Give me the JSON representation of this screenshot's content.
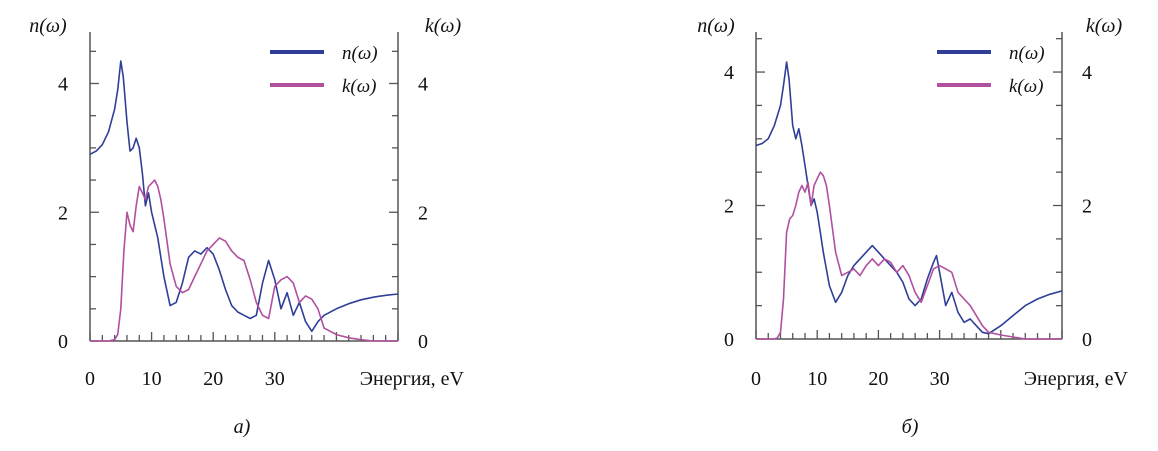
{
  "colors": {
    "n": "#2f3f97",
    "k": "#b0509f",
    "axis": "#555555"
  },
  "chart_data": [
    {
      "type": "line",
      "caption": "a)",
      "left_axis_title": "n(ω)",
      "right_axis_title": "k(ω)",
      "xlabel": "Энергия, eV",
      "xlim": [
        0,
        50
      ],
      "ylim": [
        0,
        4.8
      ],
      "x_ticks": [
        0,
        10,
        20,
        30
      ],
      "y_ticks": [
        0,
        2,
        4
      ],
      "legend_position": "top-right",
      "series": [
        {
          "name": "n(ω)",
          "color_key": "n",
          "x": [
            0,
            1,
            2,
            3,
            4,
            4.5,
            5,
            5.4,
            6,
            6.5,
            7,
            7.5,
            8,
            8.5,
            9,
            9.5,
            10,
            10.5,
            11,
            12,
            13,
            14,
            15,
            16,
            17,
            18,
            19,
            20,
            21,
            22,
            23,
            24,
            25,
            26,
            27,
            28,
            29,
            30,
            31,
            32,
            33,
            34,
            35,
            36,
            37,
            38,
            40,
            42,
            44,
            46,
            48,
            50
          ],
          "values": [
            2.9,
            2.95,
            3.05,
            3.25,
            3.6,
            3.9,
            4.35,
            4.1,
            3.4,
            2.95,
            3.0,
            3.15,
            3.0,
            2.6,
            2.1,
            2.3,
            2.0,
            1.8,
            1.6,
            1.0,
            0.55,
            0.6,
            0.9,
            1.3,
            1.4,
            1.35,
            1.45,
            1.35,
            1.1,
            0.8,
            0.55,
            0.45,
            0.4,
            0.35,
            0.4,
            0.9,
            1.25,
            0.95,
            0.5,
            0.75,
            0.4,
            0.6,
            0.3,
            0.15,
            0.3,
            0.4,
            0.5,
            0.58,
            0.64,
            0.68,
            0.71,
            0.73
          ]
        },
        {
          "name": "k(ω)",
          "color_key": "k",
          "x": [
            0,
            3,
            4,
            4.5,
            5,
            5.5,
            6,
            6.5,
            7,
            7.5,
            8,
            8.5,
            9,
            9.5,
            10,
            10.5,
            11,
            11.5,
            12,
            13,
            14,
            15,
            16,
            17,
            18,
            19,
            20,
            21,
            22,
            23,
            24,
            25,
            26,
            27,
            28,
            29,
            30,
            31,
            32,
            33,
            34,
            35,
            36,
            37,
            38,
            40,
            42,
            44,
            46,
            48,
            50
          ],
          "values": [
            0.0,
            0.0,
            0.02,
            0.1,
            0.5,
            1.4,
            2.0,
            1.8,
            1.7,
            2.1,
            2.4,
            2.3,
            2.2,
            2.4,
            2.45,
            2.5,
            2.4,
            2.2,
            1.9,
            1.2,
            0.85,
            0.75,
            0.8,
            1.0,
            1.2,
            1.4,
            1.5,
            1.6,
            1.55,
            1.4,
            1.3,
            1.25,
            0.95,
            0.6,
            0.4,
            0.35,
            0.85,
            0.95,
            1.0,
            0.9,
            0.6,
            0.7,
            0.65,
            0.5,
            0.2,
            0.1,
            0.05,
            0.02,
            0.0,
            0.0,
            0.0
          ]
        }
      ]
    },
    {
      "type": "line",
      "caption": "б)",
      "left_axis_title": "n(ω)",
      "right_axis_title": "k(ω)",
      "xlabel": "Энергия, eV",
      "xlim": [
        0,
        50
      ],
      "ylim": [
        0,
        4.6
      ],
      "x_ticks": [
        0,
        10,
        20,
        30
      ],
      "y_ticks": [
        0,
        2,
        4
      ],
      "legend_position": "top-right",
      "series": [
        {
          "name": "n(ω)",
          "color_key": "n",
          "x": [
            0,
            1,
            2,
            3,
            4,
            4.5,
            5,
            5.4,
            6,
            6.5,
            7,
            7.5,
            8,
            8.5,
            9,
            9.5,
            10,
            10.5,
            11,
            12,
            13,
            14,
            15,
            16,
            17,
            18,
            19,
            20,
            21,
            22,
            23,
            24,
            25,
            26,
            27,
            28,
            29,
            29.5,
            30,
            31,
            32,
            33,
            34,
            35,
            36,
            37,
            38,
            40,
            42,
            44,
            46,
            48,
            50
          ],
          "values": [
            2.9,
            2.93,
            3.0,
            3.2,
            3.5,
            3.8,
            4.15,
            3.9,
            3.2,
            3.0,
            3.15,
            2.9,
            2.6,
            2.3,
            2.0,
            2.1,
            1.9,
            1.6,
            1.3,
            0.8,
            0.55,
            0.7,
            0.95,
            1.1,
            1.2,
            1.3,
            1.4,
            1.3,
            1.2,
            1.1,
            1.0,
            0.85,
            0.6,
            0.5,
            0.6,
            0.9,
            1.15,
            1.25,
            1.0,
            0.5,
            0.7,
            0.4,
            0.25,
            0.3,
            0.2,
            0.1,
            0.08,
            0.2,
            0.35,
            0.5,
            0.6,
            0.67,
            0.72
          ]
        },
        {
          "name": "k(ω)",
          "color_key": "k",
          "x": [
            0,
            3,
            3.5,
            4,
            4.5,
            5,
            5.5,
            6,
            6.5,
            7,
            7.5,
            8,
            8.5,
            9,
            9.5,
            10,
            10.5,
            11,
            11.5,
            12,
            13,
            14,
            15,
            16,
            17,
            18,
            19,
            20,
            21,
            22,
            23,
            24,
            25,
            26,
            27,
            28,
            29,
            30,
            31,
            32,
            33,
            34,
            35,
            36,
            37,
            38,
            40,
            42,
            44,
            46,
            48,
            50
          ],
          "values": [
            0.0,
            0.0,
            0.02,
            0.1,
            0.6,
            1.6,
            1.8,
            1.85,
            2.0,
            2.2,
            2.3,
            2.2,
            2.35,
            2.0,
            2.3,
            2.4,
            2.5,
            2.45,
            2.3,
            2.0,
            1.3,
            0.95,
            1.0,
            1.05,
            0.95,
            1.1,
            1.2,
            1.1,
            1.2,
            1.15,
            1.0,
            1.1,
            0.95,
            0.7,
            0.55,
            0.8,
            1.05,
            1.1,
            1.05,
            1.0,
            0.7,
            0.6,
            0.5,
            0.35,
            0.2,
            0.1,
            0.06,
            0.03,
            0.0,
            0.0,
            0.0,
            0.0
          ]
        }
      ]
    }
  ]
}
